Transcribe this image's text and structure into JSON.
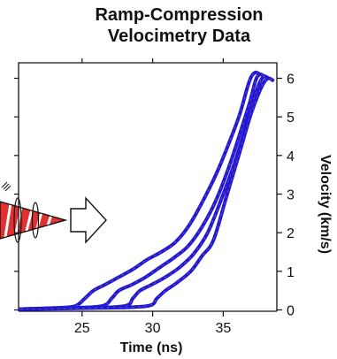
{
  "chart_data": {
    "type": "line",
    "title_lines": [
      "Ramp-Compression",
      "Velocimetry Data"
    ],
    "xlabel": "Time (ns)",
    "ylabel": "Velocity (km/s)",
    "xlim": [
      20.5,
      38.8
    ],
    "ylim": [
      0,
      6.25
    ],
    "x_ticks": [
      25,
      30,
      35
    ],
    "y_ticks": [
      0,
      1,
      2,
      3,
      4,
      5,
      6
    ],
    "grid": false,
    "colors": {
      "trace": "#1a1adb",
      "fit": "#d94060",
      "axis": "#111111",
      "laser_red": "#e03030",
      "laser_white": "#ffffff"
    },
    "series": [
      {
        "x": [
          20.6,
          23,
          24.5,
          25.2,
          25.8,
          26.6,
          27.6,
          28.6,
          29.6,
          30.6,
          31.6,
          32.6,
          33.6,
          34.6,
          35.6,
          36.2,
          36.7,
          37.0,
          37.3,
          37.6
        ],
        "y": [
          0.02,
          0.05,
          0.1,
          0.3,
          0.5,
          0.65,
          0.85,
          1.05,
          1.3,
          1.5,
          1.75,
          2.2,
          2.85,
          3.6,
          4.5,
          5.1,
          5.75,
          6.05,
          6.15,
          6.1
        ]
      },
      {
        "x": [
          20.6,
          24,
          26.4,
          27.1,
          27.6,
          28.5,
          29.5,
          30.5,
          31.5,
          32.5,
          33.5,
          34.5,
          35.5,
          36.3,
          36.9,
          37.3,
          37.6,
          37.9
        ],
        "y": [
          0.02,
          0.05,
          0.1,
          0.3,
          0.5,
          0.65,
          0.85,
          1.1,
          1.35,
          1.65,
          2.15,
          2.85,
          3.8,
          4.7,
          5.4,
          5.95,
          6.1,
          6.05
        ]
      },
      {
        "x": [
          20.6,
          25,
          28.0,
          28.6,
          29.1,
          29.9,
          30.9,
          31.9,
          32.9,
          33.9,
          34.9,
          35.8,
          36.6,
          37.2,
          37.6,
          37.9,
          38.2
        ],
        "y": [
          0.02,
          0.05,
          0.1,
          0.3,
          0.5,
          0.65,
          0.85,
          1.1,
          1.45,
          2.0,
          2.9,
          3.8,
          4.75,
          5.5,
          5.9,
          6.05,
          6.0
        ]
      },
      {
        "x": [
          20.6,
          26,
          29.6,
          30.3,
          30.9,
          31.7,
          32.7,
          33.5,
          34.3,
          35.2,
          36.1,
          36.9,
          37.5,
          37.9,
          38.2,
          38.5
        ],
        "y": [
          0.02,
          0.05,
          0.1,
          0.3,
          0.5,
          0.7,
          1.0,
          1.4,
          1.8,
          2.9,
          4.0,
          5.0,
          5.6,
          5.9,
          6.0,
          5.95
        ]
      }
    ]
  }
}
